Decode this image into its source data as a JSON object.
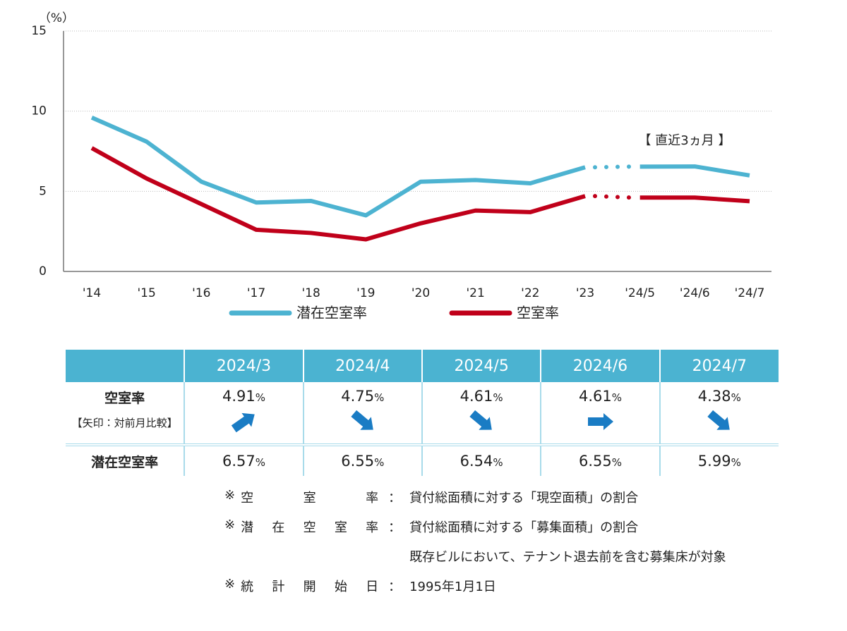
{
  "chart_data": {
    "type": "line",
    "y_label": "（%）",
    "annotation": "【 直近3ヵ月 】",
    "categories": [
      "'14",
      "'15",
      "'16",
      "'17",
      "'18",
      "'19",
      "'20",
      "'21",
      "'22",
      "'23",
      "'24/5",
      "'24/6",
      "'24/7"
    ],
    "series": [
      {
        "name": "潜在空室率",
        "color": "#4db3d1",
        "values": [
          9.6,
          8.1,
          5.6,
          4.3,
          4.4,
          3.5,
          5.6,
          5.7,
          5.5,
          6.5,
          6.54,
          6.55,
          5.99
        ]
      },
      {
        "name": "空室率",
        "color": "#c0001a",
        "values": [
          7.7,
          5.8,
          4.2,
          2.6,
          2.4,
          2.0,
          3.0,
          3.8,
          3.7,
          4.7,
          4.61,
          4.61,
          4.38
        ]
      }
    ],
    "dotted_segments": [
      [
        9,
        10
      ]
    ],
    "ylim": [
      0,
      15
    ],
    "yticks": [
      0,
      5,
      10,
      15
    ],
    "grid": true
  },
  "table": {
    "columns": [
      "2024/3",
      "2024/4",
      "2024/5",
      "2024/6",
      "2024/7"
    ],
    "rows": [
      {
        "label": "空室率",
        "sublabel": "【矢印：対前月比較】",
        "cells": [
          {
            "number": "4.91",
            "unit": "%"
          },
          {
            "number": "4.75",
            "unit": "%"
          },
          {
            "number": "4.61",
            "unit": "%"
          },
          {
            "number": "4.61",
            "unit": "%"
          },
          {
            "number": "4.38",
            "unit": "%"
          }
        ]
      },
      {
        "label": "潜在空室率",
        "cells": [
          {
            "number": "6.57",
            "unit": "%"
          },
          {
            "number": "6.55",
            "unit": "%"
          },
          {
            "number": "6.54",
            "unit": "%"
          },
          {
            "number": "6.55",
            "unit": "%"
          },
          {
            "number": "5.99",
            "unit": "%"
          }
        ]
      }
    ]
  },
  "notes": [
    {
      "mark": "※",
      "term": "空室率",
      "sep": "：",
      "lines": [
        "貸付総面積に対する「現空面積」の割合"
      ]
    },
    {
      "mark": "※",
      "term": "潜在空室率",
      "sep": "：",
      "lines": [
        "貸付総面積に対する「募集面積」の割合",
        "既存ビルにおいて、テナント退去前を含む募集床が対象"
      ]
    },
    {
      "mark": "※",
      "term": "統計開始日",
      "sep": "：",
      "lines": [
        "1995年1月1日"
      ]
    }
  ]
}
